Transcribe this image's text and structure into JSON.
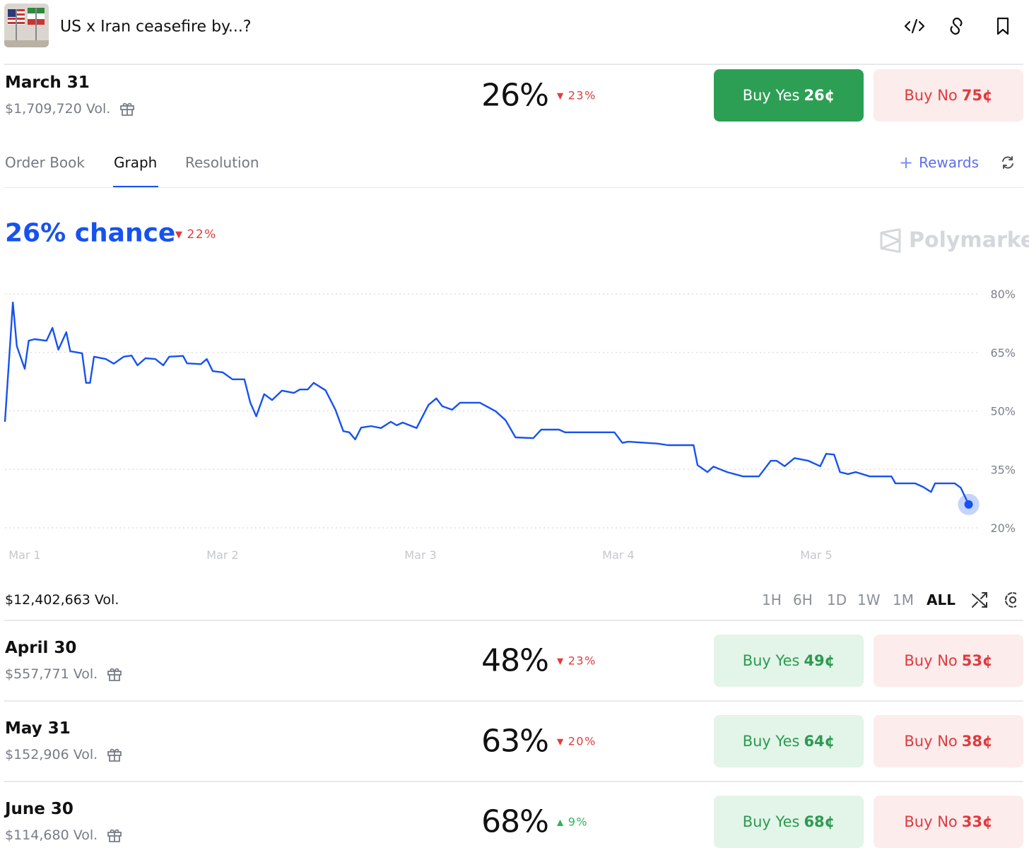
{
  "header": {
    "title": "US x Iran ceasefire by...?"
  },
  "markets": [
    {
      "date": "March 31",
      "volume": "$1,709,720 Vol.",
      "chance": "26%",
      "change": "23%",
      "direction": "down",
      "yes": "Buy Yes",
      "yes_price": "26¢",
      "no": "Buy No",
      "no_price": "75¢"
    },
    {
      "date": "April 30",
      "volume": "$557,771 Vol.",
      "chance": "48%",
      "change": "23%",
      "direction": "down",
      "yes": "Buy Yes",
      "yes_price": "49¢",
      "no": "Buy No",
      "no_price": "53¢"
    },
    {
      "date": "May 31",
      "volume": "$152,906 Vol.",
      "chance": "63%",
      "change": "20%",
      "direction": "down",
      "yes": "Buy Yes",
      "yes_price": "64¢",
      "no": "Buy No",
      "no_price": "38¢"
    },
    {
      "date": "June 30",
      "volume": "$114,680 Vol.",
      "chance": "68%",
      "change": "9%",
      "direction": "up",
      "yes": "Buy Yes",
      "yes_price": "68¢",
      "no": "Buy No",
      "no_price": "33¢"
    }
  ],
  "tabs": {
    "items": [
      "Order Book",
      "Graph",
      "Resolution"
    ],
    "active": 1,
    "rewards": "Rewards"
  },
  "summary": {
    "headline": "26% chance",
    "change": "22%",
    "brand": "Polymarket"
  },
  "chart_data": {
    "type": "line",
    "color": "#1652f0",
    "x": [
      0.9,
      0.94,
      0.96,
      1.0,
      1.02,
      1.05,
      1.11,
      1.14,
      1.17,
      1.21,
      1.23,
      1.29,
      1.31,
      1.33,
      1.35,
      1.41,
      1.45,
      1.5,
      1.54,
      1.57,
      1.61,
      1.66,
      1.7,
      1.73,
      1.8,
      1.82,
      1.89,
      1.92,
      1.95,
      2.0,
      2.05,
      2.11,
      2.14,
      2.17,
      2.21,
      2.25,
      2.3,
      2.36,
      2.39,
      2.43,
      2.46,
      2.52,
      2.57,
      2.61,
      2.64,
      2.67,
      2.7,
      2.75,
      2.8,
      2.85,
      2.88,
      2.91,
      2.98,
      3.04,
      3.08,
      3.11,
      3.16,
      3.2,
      3.3,
      3.38,
      3.43,
      3.48,
      3.57,
      3.61,
      3.7,
      3.73,
      3.98,
      4.02,
      4.05,
      4.2,
      4.25,
      4.38,
      4.4,
      4.45,
      4.48,
      4.55,
      4.63,
      4.71,
      4.77,
      4.8,
      4.84,
      4.89,
      4.96,
      5.02,
      5.05,
      5.09,
      5.12,
      5.16,
      5.2,
      5.27,
      5.38,
      5.4,
      5.5,
      5.54,
      5.58,
      5.6,
      5.7,
      5.73,
      5.77
    ],
    "values": [
      47.2,
      77.8,
      66.6,
      60.8,
      68.0,
      68.4,
      68.0,
      71.3,
      65.7,
      70.2,
      65.3,
      64.8,
      57.2,
      57.2,
      63.9,
      63.3,
      62.1,
      63.9,
      64.2,
      61.7,
      63.5,
      63.3,
      61.7,
      63.9,
      64.1,
      62.2,
      62.0,
      63.3,
      60.2,
      59.9,
      58.1,
      58.1,
      52.1,
      48.6,
      54.3,
      52.8,
      55.2,
      54.6,
      55.5,
      55.5,
      57.2,
      55.3,
      50.3,
      44.8,
      44.5,
      42.7,
      45.7,
      46.1,
      45.6,
      47.2,
      46.3,
      47.0,
      45.6,
      51.5,
      53.2,
      51.2,
      50.3,
      52.1,
      52.1,
      49.9,
      47.6,
      43.2,
      43.0,
      45.2,
      45.2,
      44.5,
      44.5,
      41.8,
      42.1,
      41.6,
      41.2,
      41.2,
      36.1,
      34.3,
      35.7,
      34.3,
      33.2,
      33.2,
      37.2,
      37.2,
      35.8,
      37.9,
      37.2,
      35.8,
      39.0,
      38.8,
      34.3,
      33.8,
      34.3,
      33.2,
      33.2,
      31.4,
      31.4,
      30.5,
      29.2,
      31.4,
      31.4,
      30.3,
      26
    ],
    "xlim": [
      0.875,
      5.8
    ],
    "xticks": [
      {
        "value": 1,
        "label": "Mar 1"
      },
      {
        "value": 2,
        "label": "Mar 2"
      },
      {
        "value": 3,
        "label": "Mar 3"
      },
      {
        "value": 4,
        "label": "Mar 4"
      },
      {
        "value": 5,
        "label": "Mar 5"
      }
    ],
    "ylim": [
      20,
      80
    ],
    "yticks": [
      {
        "value": 20,
        "label": "20%"
      },
      {
        "value": 35,
        "label": "35%"
      },
      {
        "value": 50,
        "label": "50%"
      },
      {
        "value": 65,
        "label": "65%"
      },
      {
        "value": 80,
        "label": "80%"
      }
    ],
    "grid": true
  },
  "footer": {
    "volume": "$12,402,663 Vol.",
    "ranges": [
      "1H",
      "6H",
      "1D",
      "1W",
      "1M",
      "ALL"
    ],
    "active": 5
  }
}
